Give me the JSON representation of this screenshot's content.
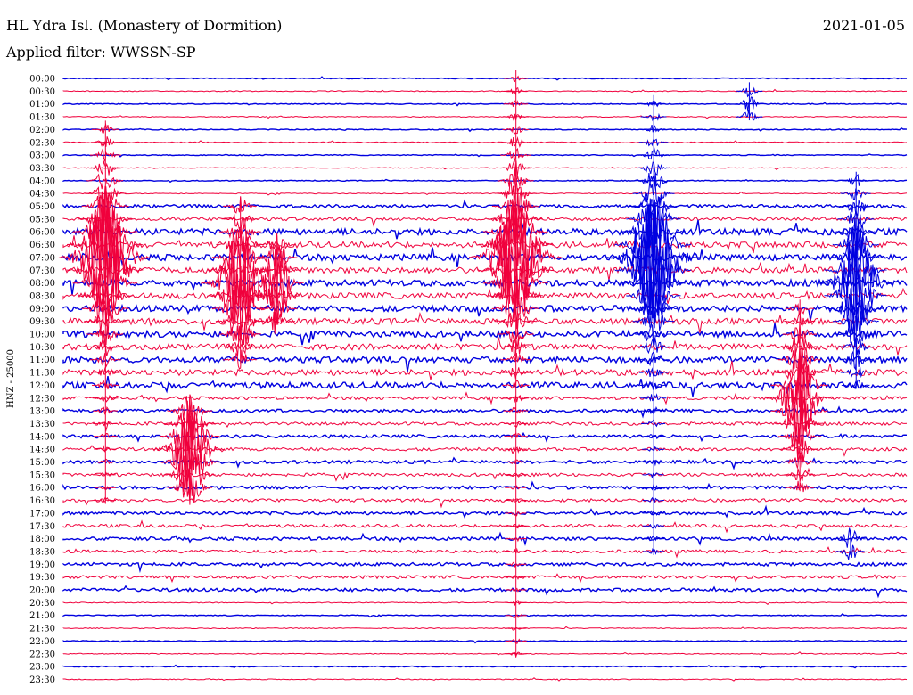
{
  "header": {
    "station": "HL Ydra Isl. (Monastery of Dormition)",
    "date": "2021-01-05",
    "filter": "Applied filter: WWSSN-SP"
  },
  "chart_data": {
    "type": "line",
    "title": "HL Ydra Isl. (Monastery of Dormition)",
    "ylabel": "HNZ - 25000",
    "row_labels": [
      "00:00",
      "00:30",
      "01:00",
      "01:30",
      "02:00",
      "02:30",
      "03:00",
      "03:30",
      "04:00",
      "04:30",
      "05:00",
      "05:30",
      "06:00",
      "06:30",
      "07:00",
      "07:30",
      "08:00",
      "08:30",
      "09:00",
      "09:30",
      "10:00",
      "10:30",
      "11:00",
      "11:30",
      "12:00",
      "12:30",
      "13:00",
      "13:30",
      "14:00",
      "14:30",
      "15:00",
      "15:30",
      "16:00",
      "16:30",
      "17:00",
      "17:30",
      "18:00",
      "18:30",
      "19:00",
      "19:30",
      "20:00",
      "20:30",
      "21:00",
      "21:30",
      "22:00",
      "22:30",
      "23:00",
      "23:30"
    ],
    "x_range_minutes": [
      0,
      30
    ],
    "colors": {
      "even_rows": "#0000e0",
      "odd_rows": "#f0003c"
    },
    "events": [
      {
        "minute": 1.5,
        "row_from": 4,
        "row_to": 33,
        "peak_row": 14,
        "amplitude": 1.0,
        "color": "#f0003c"
      },
      {
        "minute": 6.3,
        "row_from": 10,
        "row_to": 22,
        "peak_row": 16,
        "amplitude": 0.8,
        "color": "#f0003c"
      },
      {
        "minute": 7.6,
        "row_from": 13,
        "row_to": 19,
        "peak_row": 16,
        "amplitude": 0.45,
        "color": "#f0003c"
      },
      {
        "minute": 4.5,
        "row_from": 26,
        "row_to": 32,
        "peak_row": 29,
        "amplitude": 0.7,
        "color": "#f0003c"
      },
      {
        "minute": 16.1,
        "row_from": 0,
        "row_to": 45,
        "peak_row": 14,
        "amplitude": 1.0,
        "color": "#f0003c"
      },
      {
        "minute": 21.0,
        "row_from": 2,
        "row_to": 37,
        "peak_row": 14,
        "amplitude": 1.0,
        "color": "#0000e0"
      },
      {
        "minute": 28.2,
        "row_from": 8,
        "row_to": 24,
        "peak_row": 16,
        "amplitude": 0.75,
        "color": "#0000e0"
      },
      {
        "minute": 26.2,
        "row_from": 18,
        "row_to": 32,
        "peak_row": 25,
        "amplitude": 0.65,
        "color": "#f0003c"
      },
      {
        "minute": 28.0,
        "row_from": 36,
        "row_to": 37,
        "peak_row": 36,
        "amplitude": 0.15,
        "color": "#0000e0"
      },
      {
        "minute": 24.4,
        "row_from": 1,
        "row_to": 3,
        "peak_row": 2,
        "amplitude": 0.1,
        "color": "#0000e0"
      }
    ]
  }
}
